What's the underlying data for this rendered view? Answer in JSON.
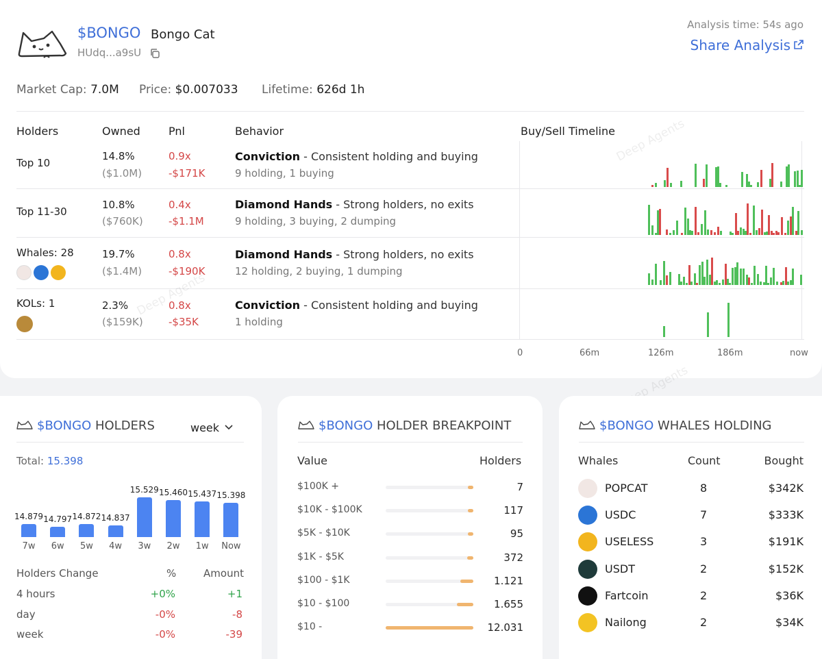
{
  "token": {
    "symbol": "$BONGO",
    "name": "Bongo Cat",
    "address": "HUdq...a9sU",
    "analysis_time": "Analysis time: 54s ago",
    "share_label": "Share Analysis"
  },
  "stats": {
    "market_cap_label": "Market Cap:",
    "market_cap": "7.0M",
    "price_label": "Price:",
    "price": "$0.007033",
    "lifetime_label": "Lifetime:",
    "lifetime": "626d 1h"
  },
  "table": {
    "headers": [
      "Holders",
      "Owned",
      "Pnl",
      "Behavior",
      "Buy/Sell Timeline"
    ],
    "rows": [
      {
        "holders": "Top 10",
        "owned_pct": "14.8%",
        "owned_usd": "($1.0M)",
        "pnl_x": "0.9x",
        "pnl_usd": "-$171K",
        "behavior_title": "Conviction",
        "behavior_desc": " - Consistent holding and buying",
        "behavior_detail": "9 holding, 1 buying"
      },
      {
        "holders": "Top 11-30",
        "owned_pct": "10.8%",
        "owned_usd": "($760K)",
        "pnl_x": "0.4x",
        "pnl_usd": "-$1.1M",
        "behavior_title": "Diamond Hands",
        "behavior_desc": " - Strong holders, no exits",
        "behavior_detail": "9 holding, 3 buying, 2 dumping"
      },
      {
        "holders": "Whales: 28",
        "owned_pct": "19.7%",
        "owned_usd": "($1.4M)",
        "pnl_x": "0.8x",
        "pnl_usd": "-$190K",
        "behavior_title": "Diamond Hands",
        "behavior_desc": " - Strong holders, no exits",
        "behavior_detail": "12 holding, 2 buying, 1 dumping"
      },
      {
        "holders": "KOLs: 1",
        "owned_pct": "2.3%",
        "owned_usd": "($159K)",
        "pnl_x": "0.8x",
        "pnl_usd": "-$35K",
        "behavior_title": "Conviction",
        "behavior_desc": " - Consistent holding and buying",
        "behavior_detail": "1 holding"
      }
    ],
    "timeline_ticks": [
      "0",
      "66m",
      "126m",
      "186m",
      "now"
    ]
  },
  "watermark": "Deep Agents",
  "holders_panel": {
    "symbol": "$BONGO",
    "title": "HOLDERS",
    "period": "week",
    "total_label": "Total:",
    "total": "15.398",
    "change_headers": [
      "Holders Change",
      "%",
      "Amount"
    ],
    "changes": [
      {
        "label": "4 hours",
        "pct": "+0%",
        "amount": "+1"
      },
      {
        "label": "day",
        "pct": "-0%",
        "amount": "-8"
      },
      {
        "label": "week",
        "pct": "-0%",
        "amount": "-39"
      }
    ]
  },
  "breakpoint_panel": {
    "symbol": "$BONGO",
    "title": "HOLDER BREAKPOINT",
    "headers": [
      "Value",
      "Holders"
    ],
    "rows": [
      {
        "value": "$100K +",
        "holders": "7",
        "fill": 0.04
      },
      {
        "value": "$10K - $100K",
        "holders": "117",
        "fill": 0.04
      },
      {
        "value": "$5K - $10K",
        "holders": "95",
        "fill": 0.04
      },
      {
        "value": "$1K - $5K",
        "holders": "372",
        "fill": 0.07
      },
      {
        "value": "$100 - $1K",
        "holders": "1.121",
        "fill": 0.15
      },
      {
        "value": "$10 - $100",
        "holders": "1.655",
        "fill": 0.19
      },
      {
        "value": "$10 -",
        "holders": "12.031",
        "fill": 1.0
      }
    ]
  },
  "whales_panel": {
    "symbol": "$BONGO",
    "title": "WHALES HOLDING",
    "headers": [
      "Whales",
      "Count",
      "Bought"
    ],
    "rows": [
      {
        "name": "POPCAT",
        "count": "8",
        "bought": "$342K",
        "icon": "popcat-icon",
        "color": "#f1e7e4"
      },
      {
        "name": "USDC",
        "count": "7",
        "bought": "$333K",
        "icon": "usdc-icon",
        "color": "#2b75d6"
      },
      {
        "name": "USELESS",
        "count": "3",
        "bought": "$191K",
        "icon": "useless-icon",
        "color": "#f2b51e"
      },
      {
        "name": "USDT",
        "count": "2",
        "bought": "$152K",
        "icon": "usdt-icon",
        "color": "#1f3b3a"
      },
      {
        "name": "Fartcoin",
        "count": "2",
        "bought": "$36K",
        "icon": "fartcoin-icon",
        "color": "#111111"
      },
      {
        "name": "Nailong",
        "count": "2",
        "bought": "$34K",
        "icon": "nailong-icon",
        "color": "#f3c323"
      }
    ]
  },
  "chart_data": {
    "type": "bar",
    "categories": [
      "7w",
      "6w",
      "5w",
      "4w",
      "3w",
      "2w",
      "1w",
      "Now"
    ],
    "labels": [
      "14.879",
      "14.797",
      "14.872",
      "14.837",
      "15.529",
      "15.460",
      "15.437",
      "15.398"
    ],
    "values": [
      14879,
      14797,
      14872,
      14837,
      15529,
      15460,
      15437,
      15398
    ],
    "ylim": [
      14550,
      15600
    ]
  }
}
